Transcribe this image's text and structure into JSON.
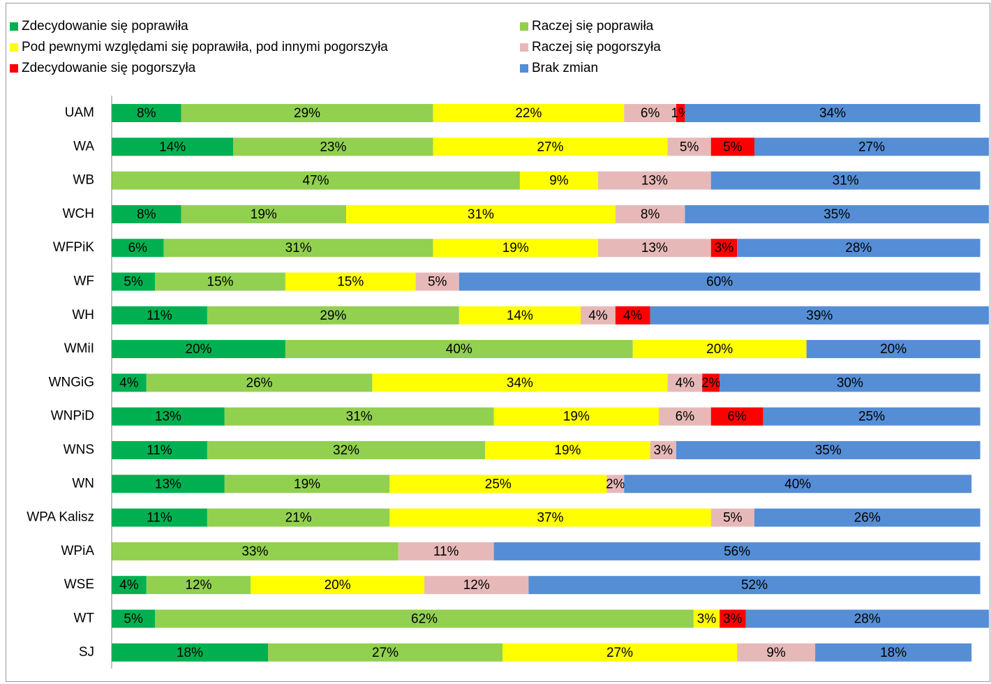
{
  "chart_data": {
    "type": "stacked-barh",
    "categories": [
      "UAM",
      "WA",
      "WB",
      "WCH",
      "WFPiK",
      "WF",
      "WH",
      "WMiI",
      "WNGiG",
      "WNPiD",
      "WNS",
      "WN",
      "WPA Kalisz",
      "WPiA",
      "WSE",
      "WT",
      "SJ"
    ],
    "xlim": [
      0,
      101
    ],
    "legend": "top",
    "series": [
      {
        "name": "Zdecydowanie się poprawiła",
        "color": "#00b050",
        "values": [
          8,
          14,
          null,
          8,
          6,
          5,
          11,
          20,
          4,
          13,
          11,
          13,
          11,
          null,
          4,
          5,
          18
        ],
        "value_labels": [
          "8%",
          "14%",
          null,
          "8%",
          "6%",
          "5%",
          "11%",
          "20%",
          "4%",
          "13%",
          "11%",
          "13%",
          "11%",
          null,
          "4%",
          "5%",
          "18%"
        ]
      },
      {
        "name": "Raczej się poprawiła",
        "color": "#92d050",
        "values": [
          29,
          23,
          47,
          19,
          31,
          15,
          29,
          40,
          26,
          31,
          32,
          19,
          21,
          33,
          12,
          62,
          27
        ],
        "value_labels": [
          "29%",
          "23%",
          "47%",
          "19%",
          "31%",
          "15%",
          "29%",
          "40%",
          "26%",
          "31%",
          "32%",
          "19%",
          "21%",
          "33%",
          "12%",
          "62%",
          "27%"
        ]
      },
      {
        "name": "Pod pewnymi względami się poprawiła, pod innymi pogorszyła",
        "color": "#ffff00",
        "values": [
          22,
          27,
          9,
          31,
          19,
          15,
          14,
          20,
          34,
          19,
          19,
          25,
          37,
          null,
          20,
          3,
          27
        ],
        "value_labels": [
          "22%",
          "27%",
          "9%",
          "31%",
          "19%",
          "15%",
          "14%",
          "20%",
          "34%",
          "19%",
          "19%",
          "25%",
          "37%",
          null,
          "20%",
          "3%",
          "27%"
        ]
      },
      {
        "name": "Raczej się pogorszyła",
        "color": "#e6b9b8",
        "values": [
          6,
          5,
          13,
          8,
          13,
          5,
          4,
          null,
          4,
          6,
          3,
          2,
          5,
          11,
          12,
          null,
          9
        ],
        "value_labels": [
          "6%",
          "5%",
          "13%",
          "8%",
          "13%",
          "5%",
          "4%",
          null,
          "4%",
          "6%",
          "3%",
          "2%",
          "5%",
          "11%",
          "12%",
          null,
          "9%"
        ]
      },
      {
        "name": "Zdecydowanie się pogorszyła",
        "color": "#ff0000",
        "values": [
          1,
          5,
          null,
          null,
          3,
          null,
          4,
          null,
          2,
          6,
          null,
          null,
          null,
          null,
          null,
          3,
          null
        ],
        "value_labels": [
          "1%",
          "5%",
          null,
          null,
          "3%",
          null,
          "4%",
          null,
          "2%",
          "6%",
          null,
          null,
          null,
          null,
          null,
          "3%",
          null
        ]
      },
      {
        "name": "Brak zmian",
        "color": "#558ed5",
        "values": [
          34,
          27,
          31,
          35,
          28,
          60,
          39,
          20,
          30,
          25,
          35,
          40,
          26,
          56,
          52,
          28,
          18
        ],
        "value_labels": [
          "34%",
          "27%",
          "31%",
          "35%",
          "28%",
          "60%",
          "39%",
          "20%",
          "30%",
          "25%",
          "35%",
          "40%",
          "26%",
          "56%",
          "52%",
          "28%",
          "18%"
        ]
      }
    ]
  }
}
